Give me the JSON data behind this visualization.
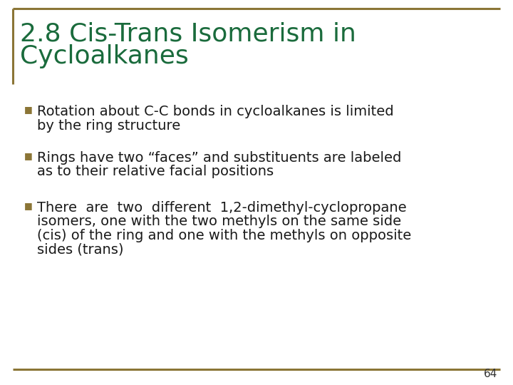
{
  "title_line1": "2.8 Cis-Trans Isomerism in",
  "title_line2": "Cycloalkanes",
  "title_color": "#1a6b3c",
  "title_fontsize": 26,
  "background_color": "#ffffff",
  "border_color": "#8b7536",
  "bullet_color": "#8b7536",
  "bullet_char": "■",
  "text_color": "#1a1a1a",
  "text_fontsize": 14,
  "page_number": "64",
  "page_number_color": "#333333",
  "page_number_fontsize": 11,
  "bullet1_line1": "Rotation about C-C bonds in cycloalkanes is limited",
  "bullet1_line2": "by the ring structure",
  "bullet2_line1": "Rings have two “faces” and substituents are labeled",
  "bullet2_line2": "as to their relative facial positions",
  "bullet3_line1": "There  are  two  different  1,2-dimethyl-cyclopropane",
  "bullet3_line2": "isomers, one with the two methyls on the same side",
  "bullet3_line3": "(cis) of the ring and one with the methyls on opposite",
  "bullet3_line4": "sides (trans)"
}
